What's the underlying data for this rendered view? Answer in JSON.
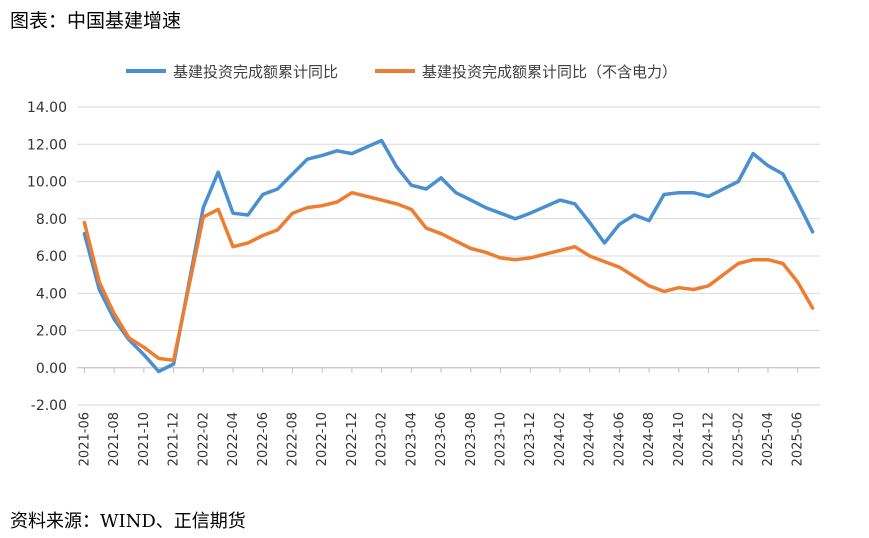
{
  "header": {
    "title": "图表：中国基建增速"
  },
  "footer": {
    "source": "资料来源：WIND、正信期货"
  },
  "chart_data": {
    "type": "line",
    "ylim": [
      -2,
      14
    ],
    "yticks": [
      "-2.00",
      "0.00",
      "2.00",
      "4.00",
      "6.00",
      "8.00",
      "10.00",
      "12.00",
      "14.00"
    ],
    "grid": true,
    "legend_position": "top",
    "x": [
      "2021-06",
      "2021-07",
      "2021-08",
      "2021-09",
      "2021-10",
      "2021-11",
      "2021-12",
      "2022-01",
      "2022-02",
      "2022-03",
      "2022-04",
      "2022-05",
      "2022-06",
      "2022-07",
      "2022-08",
      "2022-09",
      "2022-10",
      "2022-11",
      "2022-12",
      "2023-01",
      "2023-02",
      "2023-03",
      "2023-04",
      "2023-05",
      "2023-06",
      "2023-07",
      "2023-08",
      "2023-09",
      "2023-10",
      "2023-11",
      "2023-12",
      "2024-01",
      "2024-02",
      "2024-03",
      "2024-04",
      "2024-05",
      "2024-06",
      "2024-07",
      "2024-08",
      "2024-09",
      "2024-10",
      "2024-11",
      "2024-12",
      "2025-01",
      "2025-02",
      "2025-03",
      "2025-04",
      "2025-05",
      "2025-06",
      "2025-07"
    ],
    "xtick_labels": [
      "2021-06",
      "2021-08",
      "2021-10",
      "2021-12",
      "2022-02",
      "2022-04",
      "2022-06",
      "2022-08",
      "2022-10",
      "2022-12",
      "2023-02",
      "2023-04",
      "2023-06",
      "2023-08",
      "2023-10",
      "2023-12",
      "2024-02",
      "2024-04",
      "2024-06",
      "2024-08",
      "2024-10",
      "2024-12",
      "2025-02",
      "2025-04",
      "2025-06"
    ],
    "series": [
      {
        "name": "基建投资完成额累计同比",
        "color": "#4a8fcf",
        "values": [
          7.2,
          4.2,
          2.6,
          1.5,
          0.7,
          -0.2,
          0.2,
          null,
          8.6,
          10.5,
          8.3,
          8.2,
          9.3,
          9.6,
          10.4,
          11.2,
          11.4,
          11.65,
          11.5,
          null,
          12.2,
          10.8,
          9.8,
          9.6,
          10.2,
          9.4,
          9.0,
          8.6,
          8.3,
          8.0,
          8.3,
          null,
          9.0,
          8.8,
          7.8,
          6.7,
          7.7,
          8.2,
          7.9,
          9.3,
          9.4,
          9.4,
          9.2,
          null,
          10.0,
          11.5,
          10.85,
          10.4,
          8.9,
          7.3
        ]
      },
      {
        "name": "基建投资完成额累计同比（不含电力）",
        "color": "#ed7d31",
        "values": [
          7.8,
          4.6,
          2.9,
          1.6,
          1.1,
          0.5,
          0.4,
          null,
          8.1,
          8.5,
          6.5,
          6.7,
          7.1,
          7.4,
          8.3,
          8.6,
          8.7,
          8.9,
          9.4,
          null,
          9.0,
          8.8,
          8.5,
          7.5,
          7.2,
          6.8,
          6.4,
          6.2,
          5.9,
          5.8,
          5.9,
          null,
          6.3,
          6.5,
          6.0,
          5.7,
          5.4,
          4.9,
          4.4,
          4.1,
          4.3,
          4.2,
          4.4,
          null,
          5.6,
          5.8,
          5.8,
          5.6,
          4.6,
          3.2
        ]
      }
    ]
  }
}
